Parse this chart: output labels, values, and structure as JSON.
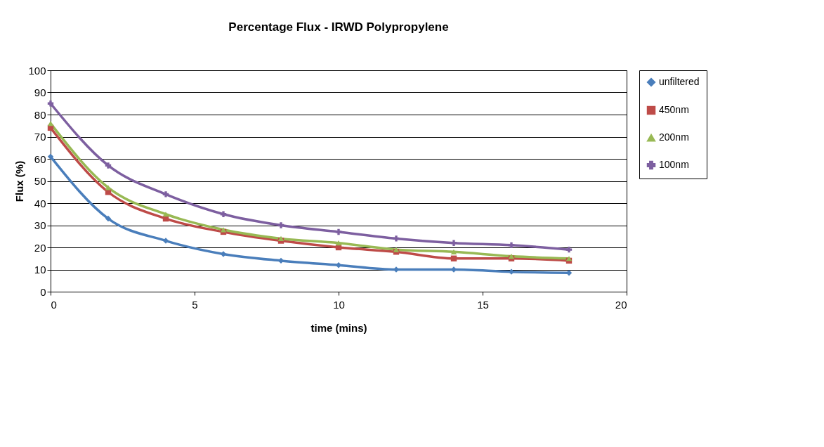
{
  "chart_data": {
    "type": "line",
    "title": "Percentage Flux - IRWD Polypropylene",
    "xlabel": "time (mins)",
    "ylabel": "Flux (%)",
    "x": [
      0,
      2,
      4,
      6,
      8,
      10,
      12,
      14,
      16,
      18
    ],
    "series": [
      {
        "name": "unfiltered",
        "color": "#4a7ebb",
        "marker": "diamond",
        "values": [
          61,
          33,
          23,
          17,
          14,
          12,
          10,
          10,
          9,
          8.5
        ]
      },
      {
        "name": "450nm",
        "color": "#be4b48",
        "marker": "square",
        "values": [
          74,
          45,
          33,
          27,
          23,
          20,
          18,
          15,
          15,
          14
        ]
      },
      {
        "name": "200nm",
        "color": "#98b954",
        "marker": "triangle",
        "values": [
          76,
          47,
          35,
          28,
          24,
          22,
          19,
          18,
          16,
          15
        ]
      },
      {
        "name": "100nm",
        "color": "#7d5fa0",
        "marker": "cross",
        "values": [
          85,
          57,
          44,
          35,
          30,
          27,
          24,
          22,
          21,
          19
        ]
      }
    ],
    "xlim": [
      0,
      20
    ],
    "xticks": [
      0,
      5,
      10,
      15,
      20
    ],
    "ylim": [
      0,
      100
    ],
    "yticks": [
      0,
      10,
      20,
      30,
      40,
      50,
      60,
      70,
      80,
      90,
      100
    ],
    "grid": "y",
    "legend": "right",
    "line_style": "solid"
  }
}
